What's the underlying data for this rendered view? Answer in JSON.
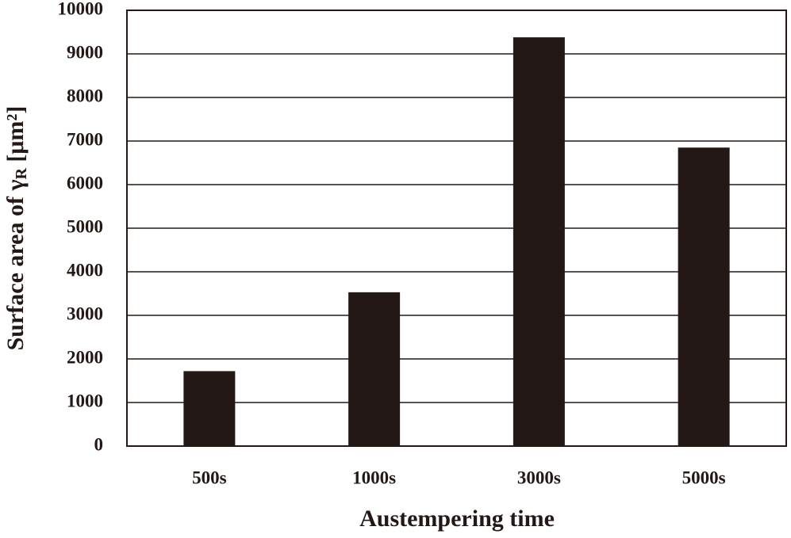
{
  "chart_data": {
    "type": "bar",
    "xlabel": "Austempering time",
    "ylabel": {
      "main": "Surface area of γ",
      "sub": "R",
      "unit": " [μm²]"
    },
    "categories": [
      "500s",
      "1000s",
      "3000s",
      "5000s"
    ],
    "values": [
      1720,
      3530,
      9380,
      6850
    ],
    "color": "#231815",
    "ylim": [
      0,
      10000
    ],
    "yticks": [
      0,
      1000,
      2000,
      3000,
      4000,
      5000,
      6000,
      7000,
      8000,
      9000,
      10000
    ],
    "grid": true
  }
}
